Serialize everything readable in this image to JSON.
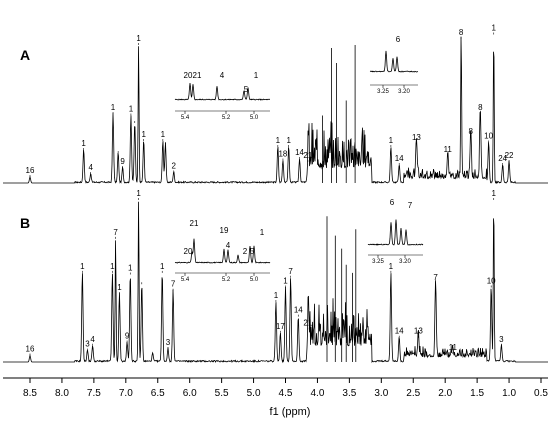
{
  "chart_data": {
    "type": "line",
    "xlabel": "f1 (ppm)",
    "xlim": [
      8.85,
      0.45
    ],
    "x_reversed": true,
    "x_ticks": [
      "8.5",
      "8.0",
      "7.5",
      "7.0",
      "6.5",
      "6.0",
      "5.5",
      "5.0",
      "4.5",
      "4.0",
      "3.5",
      "3.0",
      "2.5",
      "2.0",
      "1.5",
      "1.0",
      "0.5"
    ],
    "panels": [
      {
        "label": "A",
        "peaks": [
          {
            "ppm": 8.5,
            "h": 0.04,
            "label": "16"
          },
          {
            "ppm": 7.66,
            "h": 0.22,
            "label": "1"
          },
          {
            "ppm": 7.55,
            "h": 0.06,
            "label": "4"
          },
          {
            "ppm": 7.2,
            "h": 0.46,
            "label": "1"
          },
          {
            "ppm": 7.12,
            "h": 0.2,
            "label": ""
          },
          {
            "ppm": 7.05,
            "h": 0.1,
            "label": "9"
          },
          {
            "ppm": 6.92,
            "h": 0.45,
            "label": "1"
          },
          {
            "ppm": 6.86,
            "h": 0.4,
            "label": ""
          },
          {
            "ppm": 6.8,
            "h": 0.92,
            "label": "1"
          },
          {
            "ppm": 6.72,
            "h": 0.28,
            "label": "1"
          },
          {
            "ppm": 6.42,
            "h": 0.28,
            "label": "1"
          },
          {
            "ppm": 6.38,
            "h": 0.26,
            "label": ""
          },
          {
            "ppm": 6.25,
            "h": 0.07,
            "label": "2"
          },
          {
            "ppm": 4.62,
            "h": 0.24,
            "label": "1"
          },
          {
            "ppm": 4.54,
            "h": 0.15,
            "label": "18"
          },
          {
            "ppm": 4.45,
            "h": 0.24,
            "label": "1"
          },
          {
            "ppm": 4.28,
            "h": 0.16,
            "label": "14"
          },
          {
            "ppm": 4.15,
            "h": 0.14,
            "label": "21"
          },
          {
            "ppm": 2.85,
            "h": 0.24,
            "label": "1"
          },
          {
            "ppm": 2.72,
            "h": 0.12,
            "label": "14"
          },
          {
            "ppm": 2.45,
            "h": 0.26,
            "label": "13"
          },
          {
            "ppm": 1.96,
            "h": 0.18,
            "label": "11"
          },
          {
            "ppm": 1.75,
            "h": 0.96,
            "label": "8"
          },
          {
            "ppm": 1.6,
            "h": 0.3,
            "label": "8"
          },
          {
            "ppm": 1.45,
            "h": 0.46,
            "label": "8"
          },
          {
            "ppm": 1.32,
            "h": 0.27,
            "label": "10"
          },
          {
            "ppm": 1.24,
            "h": 0.99,
            "label": "1"
          },
          {
            "ppm": 1.1,
            "h": 0.12,
            "label": "24"
          },
          {
            "ppm": 1.0,
            "h": 0.14,
            "label": "22"
          }
        ]
      },
      {
        "label": "B",
        "peaks": [
          {
            "ppm": 8.5,
            "h": 0.04,
            "label": "16"
          },
          {
            "ppm": 7.68,
            "h": 0.55,
            "label": "1"
          },
          {
            "ppm": 7.6,
            "h": 0.07,
            "label": "3"
          },
          {
            "ppm": 7.52,
            "h": 0.1,
            "label": "4"
          },
          {
            "ppm": 7.21,
            "h": 0.55,
            "label": "1"
          },
          {
            "ppm": 7.16,
            "h": 0.76,
            "label": "7"
          },
          {
            "ppm": 7.1,
            "h": 0.42,
            "label": "1"
          },
          {
            "ppm": 6.98,
            "h": 0.12,
            "label": "9"
          },
          {
            "ppm": 6.93,
            "h": 0.54,
            "label": "1"
          },
          {
            "ppm": 6.8,
            "h": 1.0,
            "label": "1"
          },
          {
            "ppm": 6.75,
            "h": 0.48,
            "label": ""
          },
          {
            "ppm": 6.58,
            "h": 0.05,
            "label": ""
          },
          {
            "ppm": 6.43,
            "h": 0.55,
            "label": "1"
          },
          {
            "ppm": 6.34,
            "h": 0.08,
            "label": "3"
          },
          {
            "ppm": 6.26,
            "h": 0.44,
            "label": "7"
          },
          {
            "ppm": 4.65,
            "h": 0.37,
            "label": "1"
          },
          {
            "ppm": 4.58,
            "h": 0.18,
            "label": "17"
          },
          {
            "ppm": 4.5,
            "h": 0.46,
            "label": "1"
          },
          {
            "ppm": 4.42,
            "h": 0.52,
            "label": "7"
          },
          {
            "ppm": 4.3,
            "h": 0.28,
            "label": "14"
          },
          {
            "ppm": 4.15,
            "h": 0.2,
            "label": "21"
          },
          {
            "ppm": 2.85,
            "h": 0.55,
            "label": "1"
          },
          {
            "ppm": 2.72,
            "h": 0.15,
            "label": "14"
          },
          {
            "ppm": 2.42,
            "h": 0.15,
            "label": "13"
          },
          {
            "ppm": 2.15,
            "h": 0.48,
            "label": "7"
          },
          {
            "ppm": 1.88,
            "h": 0.05,
            "label": "11"
          },
          {
            "ppm": 1.28,
            "h": 0.46,
            "label": "10"
          },
          {
            "ppm": 1.24,
            "h": 1.0,
            "label": "1"
          },
          {
            "ppm": 1.12,
            "h": 0.1,
            "label": "3"
          }
        ]
      }
    ],
    "insets": [
      {
        "panel": "A",
        "x_ticks": [
          "5.4",
          "5.2",
          "5.0"
        ],
        "labels": [
          "20",
          "21",
          "4",
          "5",
          "1"
        ]
      },
      {
        "panel": "A",
        "x_ticks": [
          "3.25",
          "3.20"
        ],
        "labels": [
          "6"
        ]
      },
      {
        "panel": "B",
        "x_ticks": [
          "5.4",
          "5.2",
          "5.0"
        ],
        "labels": [
          "21",
          "19",
          "20",
          "4",
          "2",
          "5",
          "1"
        ]
      },
      {
        "panel": "B",
        "x_ticks": [
          "3.25",
          "3.20"
        ],
        "labels": [
          "6",
          "7"
        ]
      }
    ]
  }
}
